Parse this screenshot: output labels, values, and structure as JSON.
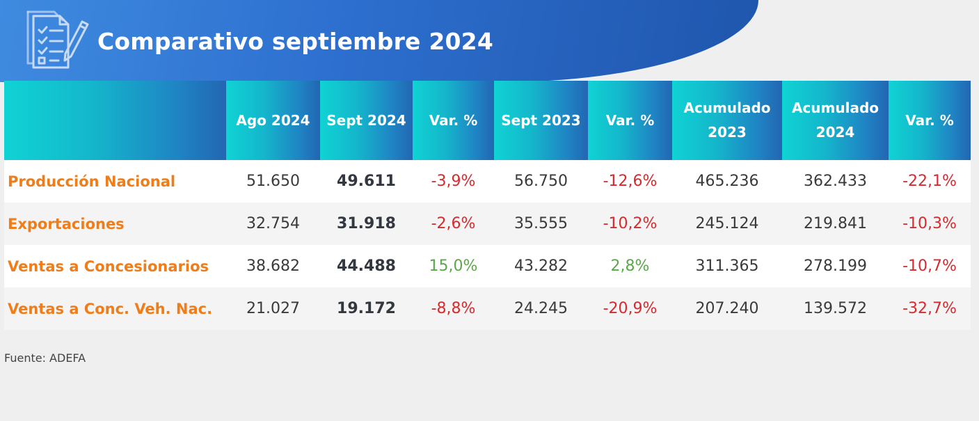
{
  "header": {
    "title": "Comparativo septiembre 2024",
    "icon": "checklist-document-icon"
  },
  "table": {
    "columns": [
      "",
      "Ago 2024",
      "Sept 2024",
      "Var. %",
      "Sept 2023",
      "Var. %",
      "Acumulado 2023",
      "Acumulado 2024",
      "Var. %"
    ],
    "rows": [
      {
        "label": "Producción Nacional",
        "values": [
          "51.650",
          "49.611",
          "-3,9%",
          "56.750",
          "-12,6%",
          "465.236",
          "362.433",
          "-22,1%"
        ]
      },
      {
        "label": "Exportaciones",
        "values": [
          "32.754",
          "31.918",
          "-2,6%",
          "35.555",
          "-10,2%",
          "245.124",
          "219.841",
          "-10,3%"
        ]
      },
      {
        "label": "Ventas a Concesionarios",
        "values": [
          "38.682",
          "44.488",
          "15,0%",
          "43.282",
          "2,8%",
          "311.365",
          "278.199",
          "-10,7%"
        ]
      },
      {
        "label": "Ventas a Conc. Veh. Nac.",
        "values": [
          "21.027",
          "19.172",
          "-8,8%",
          "24.245",
          "-20,9%",
          "207.240",
          "139.572",
          "-32,7%"
        ]
      }
    ]
  },
  "footer": {
    "source": "Fuente: ADEFA"
  },
  "colors": {
    "label": "#ef7d1a",
    "negative": "#d62a2e",
    "positive": "#5aa84a",
    "header_start": "#10d3d4",
    "header_end": "#2266b2",
    "banner": "#2d6fce"
  }
}
